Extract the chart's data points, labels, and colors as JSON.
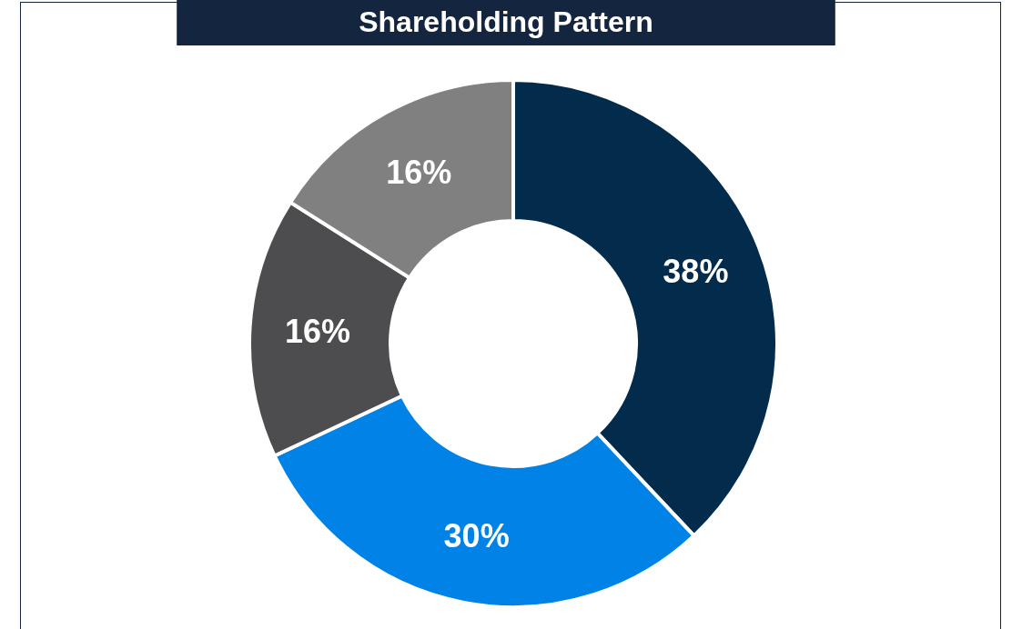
{
  "chart_data": {
    "type": "donut",
    "title": "Shareholding Pattern",
    "categories": [
      null,
      null,
      null,
      null
    ],
    "values": [
      38,
      30,
      16,
      16
    ],
    "colors": [
      "#022b4c",
      "#0082e6",
      "#4d4d4f",
      "#808080"
    ],
    "value_labels": [
      "38%",
      "30%",
      "16%",
      "16%"
    ]
  }
}
